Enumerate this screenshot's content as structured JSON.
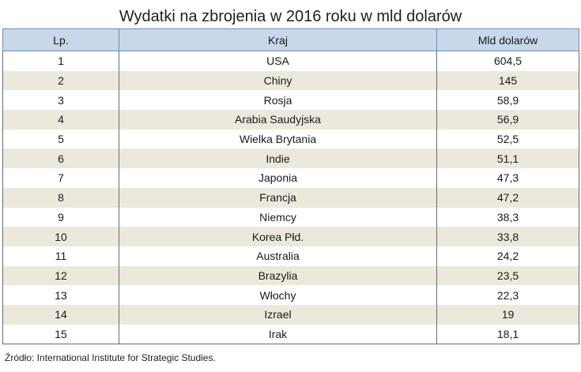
{
  "title": "Wydatki na zbrojenia w 2016 roku w mld dolarów",
  "table": {
    "headers": [
      "Lp.",
      "Kraj",
      "Mld dolarów"
    ],
    "rows": [
      [
        "1",
        "USA",
        "604,5"
      ],
      [
        "2",
        "Chiny",
        "145"
      ],
      [
        "3",
        "Rosja",
        "58,9"
      ],
      [
        "4",
        "Arabia Saudyjska",
        "56,9"
      ],
      [
        "5",
        "Wielka Brytania",
        "52,5"
      ],
      [
        "6",
        "Indie",
        "51,1"
      ],
      [
        "7",
        "Japonia",
        "47,3"
      ],
      [
        "8",
        "Francja",
        "47,2"
      ],
      [
        "9",
        "Niemcy",
        "38,3"
      ],
      [
        "10",
        "Korea Płd.",
        "33,8"
      ],
      [
        "11",
        "Australia",
        "24,2"
      ],
      [
        "12",
        "Brazylia",
        "23,5"
      ],
      [
        "13",
        "Włochy",
        "22,3"
      ],
      [
        "14",
        "Izrael",
        "19"
      ],
      [
        "15",
        "Irak",
        "18,1"
      ]
    ]
  },
  "source": "Źródło: International Institute for Strategic Studies.",
  "colors": {
    "header_bg": "#c8d7ea",
    "stripe_bg": "#ece9dc"
  }
}
